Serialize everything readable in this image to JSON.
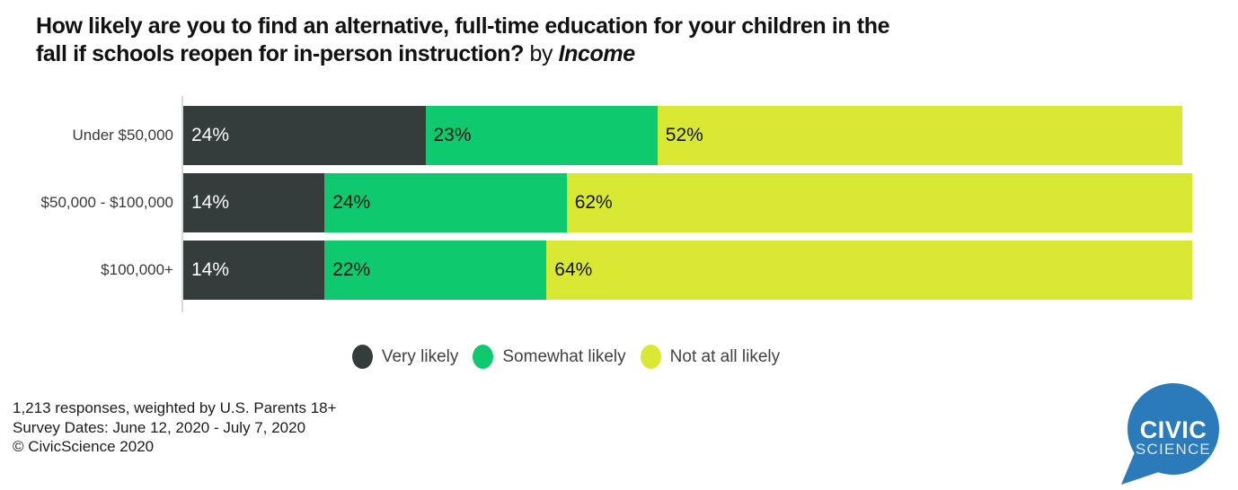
{
  "title": {
    "line1": "How likely are you to find an alternative, full-time education for your children in the",
    "line2": "fall if schools reopen for in-person instruction?",
    "connector": "by",
    "dimension": "Income"
  },
  "chart_data": {
    "type": "bar",
    "orientation": "horizontal",
    "stacked": true,
    "title": "How likely are you to find an alternative, full-time education for your children in the fall if schools reopen for in-person instruction? by Income",
    "categories": [
      "Under $50,000",
      "$50,000 - $100,000",
      "$100,000+"
    ],
    "series": [
      {
        "name": "Very likely",
        "color": "#343d3c",
        "label_color": "#ffffff",
        "values": [
          24,
          14,
          14
        ]
      },
      {
        "name": "Somewhat likely",
        "color": "#0ec96e",
        "label_color": "#111111",
        "values": [
          23,
          24,
          22
        ]
      },
      {
        "name": "Not at all likely",
        "color": "#d9e933",
        "label_color": "#111111",
        "values": [
          52,
          62,
          64
        ]
      }
    ],
    "value_suffix": "%",
    "xlim": [
      0,
      100
    ],
    "grid": false,
    "legend_position": "bottom"
  },
  "legend": {
    "items": [
      {
        "label": "Very likely",
        "color": "#343d3c"
      },
      {
        "label": "Somewhat likely",
        "color": "#0ec96e"
      },
      {
        "label": "Not at all likely",
        "color": "#d9e933"
      }
    ]
  },
  "footer": {
    "line1": "1,213 responses, weighted by U.S. Parents 18+",
    "line2": "Survey Dates: June 12, 2020 - July 7, 2020",
    "line3": "© CivicScience 2020"
  },
  "logo": {
    "line1": "CIVIC",
    "line2": "SCIENCE",
    "color": "#2b7ab9"
  }
}
